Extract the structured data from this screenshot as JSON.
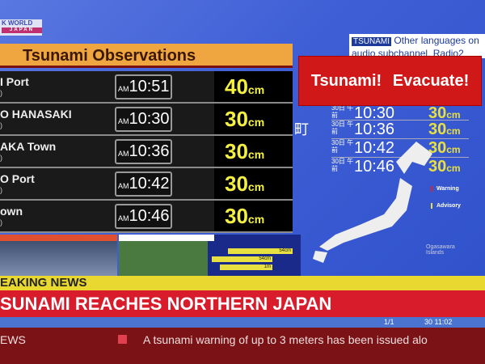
{
  "logo": {
    "line1": "K WORLD",
    "line2": "JAPAN"
  },
  "observations": {
    "title": "Tsunami Observations",
    "rows": [
      {
        "name": "I Port",
        "sub": ")",
        "ampm": "AM",
        "time": "10:51",
        "value": "40",
        "unit": "cm"
      },
      {
        "name": "O HANASAKI",
        "sub": ")",
        "ampm": "AM",
        "time": "10:30",
        "value": "30",
        "unit": "cm"
      },
      {
        "name": "AKA Town",
        "sub": ")",
        "ampm": "AM",
        "time": "10:36",
        "value": "30",
        "unit": "cm"
      },
      {
        "name": "O Port",
        "sub": ")",
        "ampm": "AM",
        "time": "10:42",
        "value": "30",
        "unit": "cm"
      },
      {
        "name": "own",
        "sub": ")",
        "ampm": "AM",
        "time": "10:46",
        "value": "30",
        "unit": "cm"
      }
    ]
  },
  "language_notice": {
    "tag": "TSUNAMI",
    "text": "Other languages on audio subchannel, Radio2"
  },
  "evacuate_banner": "Tsunami!  Evacuate!",
  "jp_rows": [
    {
      "date": "30日 午前",
      "time": "10:30",
      "value": "30",
      "unit": "cm"
    },
    {
      "date": "30日 午前",
      "time": "10:36",
      "value": "30",
      "unit": "cm"
    },
    {
      "date": "30日 午前",
      "time": "10:42",
      "value": "30",
      "unit": "cm"
    },
    {
      "date": "30日 午前",
      "time": "10:46",
      "value": "30",
      "unit": "cm"
    }
  ],
  "jp_kanji": "町",
  "legend": {
    "warning": "Warning",
    "advisory": "Advisory",
    "warning_color": "#e02020",
    "advisory_color": "#e8e040"
  },
  "ogasawara": "Ogasawara Islands",
  "map_chips": [
    "54cm",
    "54cm",
    "1m"
  ],
  "breaking": "EAKING NEWS",
  "headline": "SUNAMI REACHES NORTHERN JAPAN",
  "strip": {
    "page": "1/1",
    "clock": "30 11:02"
  },
  "ticker": {
    "label": "EWS",
    "text": "A tsunami warning of up to 3 meters has been issued alo"
  }
}
